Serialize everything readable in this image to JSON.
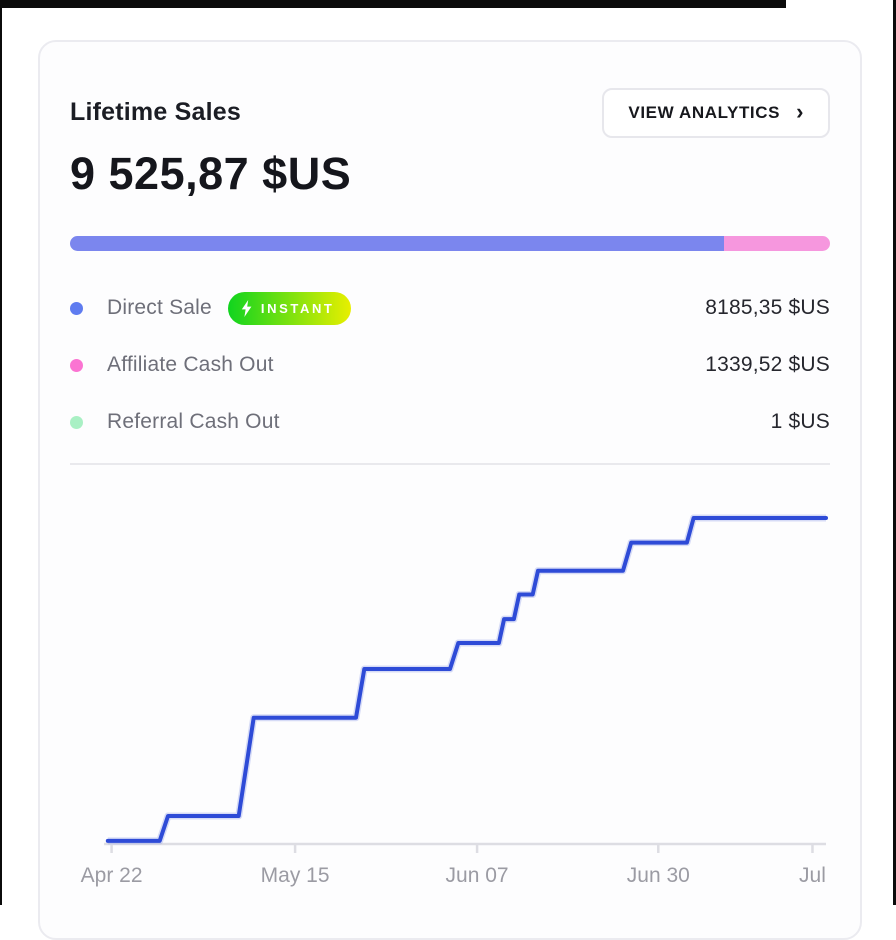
{
  "frame": {
    "edge_color": "#0b0b0b"
  },
  "card": {
    "title": "Lifetime Sales",
    "total": "9 525,87 $US",
    "button": {
      "label": "VIEW ANALYTICS",
      "chevron": "›"
    },
    "progress_segments": [
      {
        "name": "direct-sale",
        "color": "#7b86ee",
        "percent": 86
      },
      {
        "name": "affiliate-cash-out",
        "color": "#f697de",
        "percent": 14
      }
    ],
    "legend": [
      {
        "label": "Direct Sale",
        "dot_color": "#5f7cf0",
        "value": "8185,35 $US",
        "badge": {
          "label": "INSTANT",
          "icon": "lightning-icon",
          "gradient": [
            "#10d41f",
            "#e8ef00"
          ]
        }
      },
      {
        "label": "Affiliate Cash Out",
        "dot_color": "#fb74d2",
        "value": "1339,52 $US",
        "badge": null
      },
      {
        "label": "Referral Cash Out",
        "dot_color": "#a9f0c4",
        "value": "1 $US",
        "badge": null
      }
    ]
  },
  "chart_data": {
    "type": "line",
    "style": "step-cumulative",
    "title": "Lifetime sales over time",
    "grid": false,
    "y_axis_visible": false,
    "y_range_estimate": [
      0,
      9525.87
    ],
    "line_color": "#2e4bd7",
    "line_halo_color": "#8c9ae8",
    "axis_color": "#dddde3",
    "tick_label_color": "#9b9ba3",
    "x_ticks": [
      {
        "label": "Apr 22",
        "x": 0.05
      },
      {
        "label": "May 15",
        "x": 0.294
      },
      {
        "label": "Jun 07",
        "x": 0.536
      },
      {
        "label": "Jun 30",
        "x": 0.777
      },
      {
        "label": "Jul",
        "x": 0.982
      }
    ],
    "points_norm": [
      [
        0.045,
        0.003
      ],
      [
        0.114,
        0.003
      ],
      [
        0.125,
        0.074
      ],
      [
        0.219,
        0.074
      ],
      [
        0.239,
        0.354
      ],
      [
        0.375,
        0.354
      ],
      [
        0.386,
        0.493
      ],
      [
        0.5,
        0.493
      ],
      [
        0.511,
        0.567
      ],
      [
        0.565,
        0.567
      ],
      [
        0.572,
        0.635
      ],
      [
        0.585,
        0.635
      ],
      [
        0.592,
        0.705
      ],
      [
        0.61,
        0.705
      ],
      [
        0.617,
        0.773
      ],
      [
        0.73,
        0.773
      ],
      [
        0.741,
        0.853
      ],
      [
        0.815,
        0.853
      ],
      [
        0.824,
        0.923
      ],
      [
        1.0,
        0.923
      ]
    ]
  }
}
